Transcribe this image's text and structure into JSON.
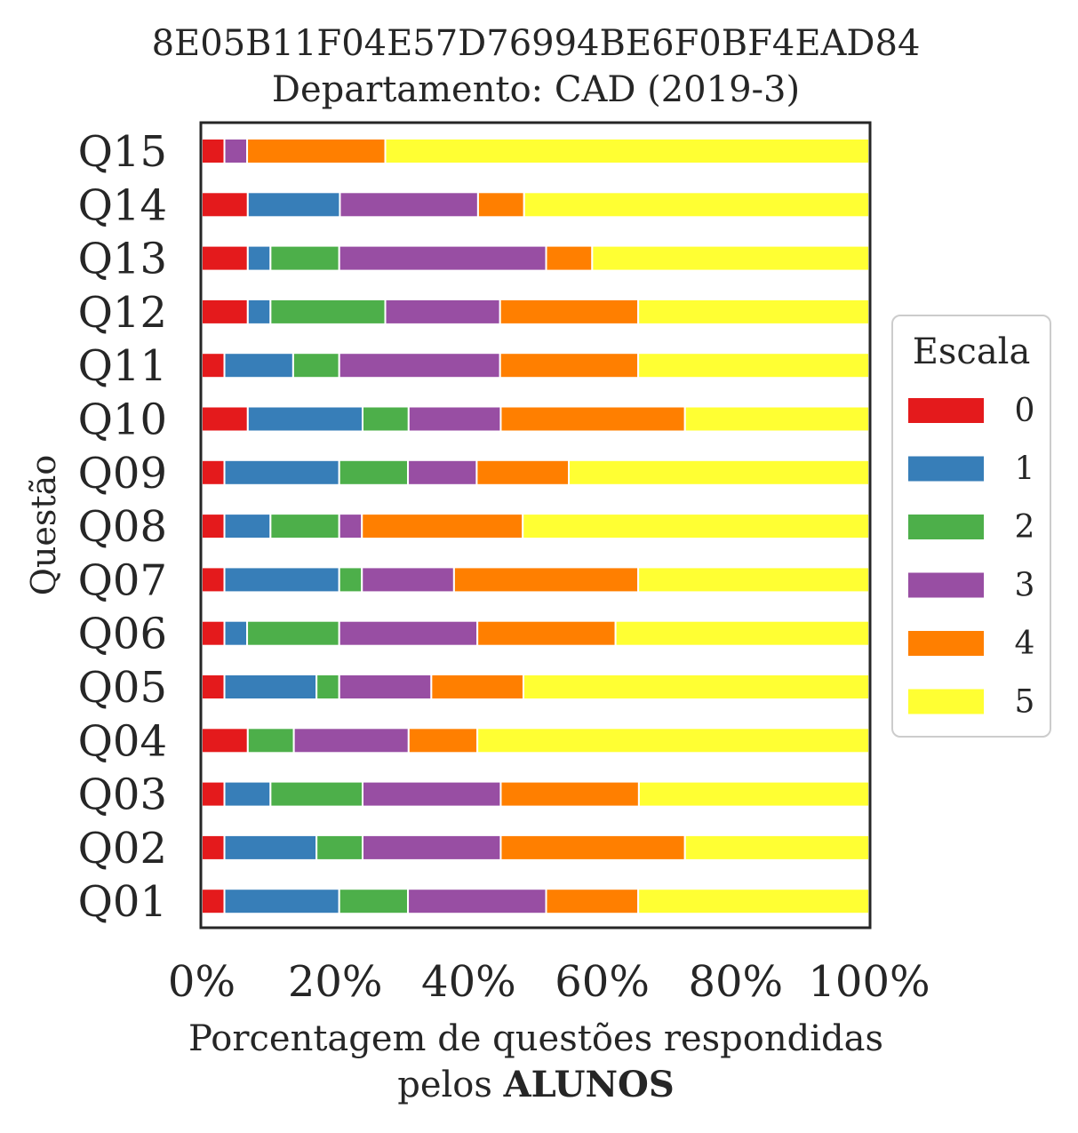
{
  "chart_data": {
    "type": "bar",
    "orientation": "horizontal",
    "stacked": true,
    "title": "8E05B11F04E57D76994BE6F0BF4EAD84",
    "subtitle": "Departamento: CAD (2019-3)",
    "xlabel_line1": "Porcentagem de questões respondidas",
    "xlabel_line2_prefix": "pelos ",
    "xlabel_line2_bold": "ALUNOS",
    "ylabel": "Questão",
    "xlim": [
      0,
      100
    ],
    "xticks": [
      "0%",
      "20%",
      "40%",
      "60%",
      "80%",
      "100%"
    ],
    "grid": false,
    "legend_title": "Escala",
    "legend_position": "right",
    "categories": [
      "Q01",
      "Q02",
      "Q03",
      "Q04",
      "Q05",
      "Q06",
      "Q07",
      "Q08",
      "Q09",
      "Q10",
      "Q11",
      "Q12",
      "Q13",
      "Q14",
      "Q15"
    ],
    "series": [
      {
        "name": "0",
        "color": "#e41a1c",
        "values": [
          3.4,
          3.4,
          3.4,
          6.9,
          3.4,
          3.4,
          3.4,
          3.4,
          3.4,
          6.9,
          3.4,
          6.9,
          6.9,
          6.9,
          3.4
        ]
      },
      {
        "name": "1",
        "color": "#377eb8",
        "values": [
          17.2,
          13.8,
          6.9,
          0,
          13.8,
          3.4,
          17.2,
          6.9,
          17.2,
          17.2,
          10.3,
          3.4,
          3.4,
          13.8,
          0
        ]
      },
      {
        "name": "2",
        "color": "#4daf4a",
        "values": [
          10.3,
          6.9,
          13.8,
          6.9,
          3.4,
          13.8,
          3.4,
          10.3,
          10.3,
          6.9,
          6.9,
          17.2,
          10.3,
          0,
          0
        ]
      },
      {
        "name": "3",
        "color": "#984ea3",
        "values": [
          20.7,
          20.7,
          20.7,
          17.2,
          13.8,
          20.7,
          13.8,
          3.4,
          10.3,
          13.8,
          24.1,
          17.2,
          31.0,
          20.7,
          3.4
        ]
      },
      {
        "name": "4",
        "color": "#ff7f00",
        "values": [
          13.8,
          27.6,
          20.7,
          10.3,
          13.8,
          20.7,
          27.6,
          24.1,
          13.8,
          27.6,
          20.7,
          20.7,
          6.9,
          6.9,
          20.7
        ]
      },
      {
        "name": "5",
        "color": "#ffff33",
        "values": [
          34.6,
          27.6,
          34.5,
          58.7,
          51.8,
          38.0,
          34.6,
          51.9,
          45.0,
          27.6,
          34.6,
          34.6,
          41.5,
          51.7,
          72.5
        ]
      }
    ]
  }
}
